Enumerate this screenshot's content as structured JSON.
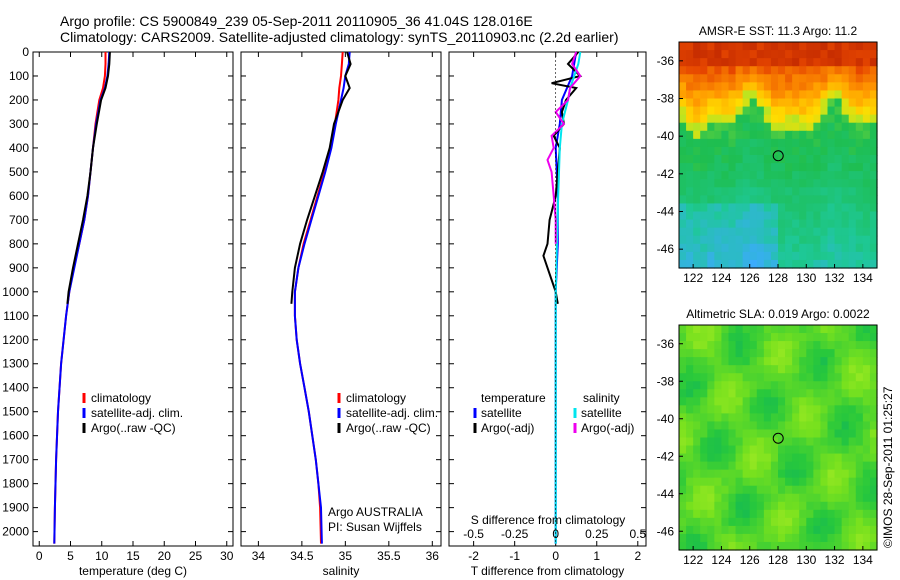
{
  "title": {
    "line1": "Argo profile: CS 5900849_239 05-Sep-2011 20110905_36 41.04S 128.016E",
    "line2": "Climatology: CARS2009. Satellite-adjusted climatology: synTS_20110903.nc (2.2d earlier)"
  },
  "credit": "©IMOS 28-Sep-2011 01:25:27",
  "colors": {
    "climatology": "#ff0000",
    "satellite": "#0000ff",
    "argo": "#000000",
    "sal_satellite": "#00e5ee",
    "sal_argo": "#ee00ee"
  },
  "chart_data": [
    {
      "type": "line",
      "id": "temperature",
      "xlabel": "temperature (deg C)",
      "ylabel": "",
      "xlim": [
        -1,
        31
      ],
      "ylim": [
        2060,
        0
      ],
      "xticks": [
        0,
        5,
        10,
        15,
        20,
        25,
        30
      ],
      "yticks": [
        0,
        100,
        200,
        300,
        400,
        500,
        600,
        700,
        800,
        900,
        1000,
        1100,
        1200,
        1300,
        1400,
        1500,
        1600,
        1700,
        1800,
        1900,
        2000
      ],
      "legend": [
        "climatology",
        "satellite-adj. clim.",
        "Argo(..raw -QC)"
      ],
      "legend_position": "lower-center",
      "series": [
        {
          "name": "climatology",
          "color": "#ff0000",
          "depth": [
            0,
            50,
            100,
            150,
            200,
            300,
            400,
            500,
            600,
            700,
            800,
            900,
            1000,
            1100,
            1200,
            1300,
            1500,
            1700,
            1900,
            2050
          ],
          "values": [
            10.6,
            10.6,
            10.5,
            10.2,
            9.6,
            9.0,
            8.6,
            8.2,
            7.8,
            7.2,
            6.4,
            5.5,
            4.8,
            4.3,
            3.9,
            3.5,
            3.0,
            2.7,
            2.5,
            2.4
          ]
        },
        {
          "name": "satellite-adj. clim.",
          "color": "#0000ff",
          "depth": [
            0,
            50,
            100,
            150,
            200,
            300,
            400,
            500,
            600,
            700,
            800,
            900,
            1000,
            1100,
            1200,
            1300,
            1500,
            1700,
            1900,
            2050
          ],
          "values": [
            11.2,
            11.1,
            10.9,
            10.5,
            9.8,
            9.1,
            8.6,
            8.2,
            7.8,
            7.2,
            6.4,
            5.6,
            4.8,
            4.3,
            3.9,
            3.5,
            3.0,
            2.7,
            2.5,
            2.4
          ]
        },
        {
          "name": "Argo(..raw -QC)",
          "color": "#000000",
          "depth": [
            0,
            50,
            100,
            150,
            200,
            300,
            400,
            500,
            600,
            700,
            800,
            900,
            1000,
            1050
          ],
          "values": [
            11.3,
            11.2,
            11.0,
            10.6,
            9.9,
            9.2,
            8.6,
            8.2,
            7.7,
            7.0,
            6.2,
            5.4,
            4.7,
            4.5
          ]
        }
      ]
    },
    {
      "type": "line",
      "id": "salinity",
      "xlabel": "salinity",
      "ylabel": "",
      "xlim": [
        33.8,
        36.1
      ],
      "ylim": [
        2060,
        0
      ],
      "xticks": [
        34,
        34.5,
        35,
        35.5,
        36
      ],
      "legend": [
        "climatology",
        "satellite-adj. clim.",
        "Argo(..raw -QC)"
      ],
      "legend_position": "lower-right",
      "annotation": [
        "Argo AUSTRALIA",
        "PI: Susan Wijffels"
      ],
      "series": [
        {
          "name": "climatology",
          "color": "#ff0000",
          "depth": [
            0,
            50,
            100,
            150,
            200,
            300,
            400,
            500,
            600,
            700,
            800,
            900,
            1000,
            1100,
            1200,
            1300,
            1400,
            1500,
            1600,
            1700,
            1800,
            1900,
            2050
          ],
          "values": [
            34.97,
            34.96,
            34.95,
            34.93,
            34.92,
            34.88,
            34.83,
            34.76,
            34.68,
            34.6,
            34.52,
            34.46,
            34.42,
            34.42,
            34.44,
            34.48,
            34.53,
            34.58,
            34.62,
            34.66,
            34.69,
            34.71,
            34.72
          ]
        },
        {
          "name": "satellite-adj. clim.",
          "color": "#0000ff",
          "depth": [
            0,
            50,
            100,
            150,
            200,
            300,
            400,
            500,
            600,
            700,
            800,
            900,
            1000,
            1100,
            1200,
            1300,
            1400,
            1500,
            1600,
            1700,
            1800,
            1900,
            2050
          ],
          "values": [
            35.05,
            35.04,
            35.0,
            34.98,
            34.95,
            34.89,
            34.84,
            34.77,
            34.69,
            34.61,
            34.53,
            34.46,
            34.42,
            34.42,
            34.44,
            34.48,
            34.53,
            34.58,
            34.62,
            34.66,
            34.69,
            34.72,
            34.73
          ]
        },
        {
          "name": "Argo(..raw -QC)",
          "color": "#000000",
          "depth": [
            0,
            50,
            100,
            150,
            200,
            300,
            400,
            500,
            600,
            700,
            800,
            900,
            1000,
            1050
          ],
          "values": [
            35.02,
            35.06,
            35.0,
            35.05,
            34.97,
            34.87,
            34.82,
            34.74,
            34.65,
            34.56,
            34.48,
            34.42,
            34.39,
            34.38
          ]
        }
      ]
    },
    {
      "type": "line",
      "id": "difference",
      "xlabel": "T difference from climatology",
      "xlabel2": "S difference from climatology",
      "xlim": [
        -2.6,
        2.2
      ],
      "ylim": [
        2060,
        0
      ],
      "xticks": [
        -2,
        -1,
        0,
        1,
        2
      ],
      "xticks_s": [
        -0.5,
        -0.25,
        0,
        0.25,
        0.5
      ],
      "xticklabels_s": [
        "-0.5",
        "-0.25",
        "0",
        "0.25",
        "0.5"
      ],
      "legend": {
        "temperature_header": "temperature",
        "salinity_header": "salinity",
        "items": [
          "satellite",
          "Argo(-adj)",
          "satellite",
          "Argo(-adj)"
        ]
      },
      "series": [
        {
          "name": "satellite",
          "group": "temperature",
          "color": "#0000ff",
          "depth": [
            0,
            100,
            200,
            300,
            400,
            600,
            800,
            1000,
            1200,
            1500,
            2050
          ],
          "values": [
            0.5,
            0.4,
            0.15,
            0.1,
            0.0,
            0.05,
            0.05,
            0.0,
            0.0,
            0.0,
            0.0
          ]
        },
        {
          "name": "Argo(-adj)",
          "group": "temperature",
          "color": "#000000",
          "depth": [
            0,
            50,
            100,
            130,
            150,
            200,
            250,
            300,
            350,
            400,
            500,
            600,
            700,
            800,
            850,
            900,
            950,
            1000,
            1050
          ],
          "values": [
            0.55,
            0.3,
            0.6,
            -0.1,
            0.5,
            0.25,
            0.15,
            0.2,
            -0.05,
            0.1,
            0.05,
            0.0,
            -0.15,
            -0.2,
            -0.3,
            -0.2,
            -0.1,
            0.0,
            0.05
          ]
        },
        {
          "name": "satellite",
          "group": "salinity",
          "color": "#00e5ee",
          "depth": [
            0,
            50,
            100,
            150,
            200,
            300,
            400,
            500,
            600,
            800,
            1000,
            1200,
            1500,
            2050
          ],
          "values": [
            0.6,
            0.55,
            0.45,
            0.35,
            0.3,
            0.15,
            0.1,
            0.08,
            0.06,
            0.03,
            0.0,
            0.0,
            0.0,
            0.0
          ]
        },
        {
          "name": "Argo(-adj)",
          "group": "salinity",
          "color": "#ee00ee",
          "depth": [
            0,
            50,
            100,
            150,
            200,
            250,
            300,
            350,
            400,
            450,
            500,
            600,
            700,
            800
          ],
          "values": [
            0.5,
            0.4,
            0.6,
            0.35,
            0.3,
            0.0,
            0.2,
            -0.1,
            -0.05,
            -0.2,
            -0.1,
            -0.05,
            0.0,
            0.0
          ]
        }
      ]
    },
    {
      "type": "heatmap",
      "id": "sst-map",
      "title": "AMSR-E SST: 11.3 Argo: 11.2",
      "xlim": [
        121,
        135
      ],
      "ylim": [
        -47,
        -35
      ],
      "xticks": [
        122,
        124,
        126,
        128,
        130,
        132,
        134
      ],
      "yticks": [
        -36,
        -38,
        -40,
        -42,
        -44,
        -46
      ],
      "marker": {
        "lon": 128.016,
        "lat": -41.04,
        "shape": "circle"
      }
    },
    {
      "type": "heatmap",
      "id": "sla-map",
      "title": "Altimetric SLA: 0.019 Argo: 0.0022",
      "xlim": [
        121,
        135
      ],
      "ylim": [
        -47,
        -35
      ],
      "xticks": [
        122,
        124,
        126,
        128,
        130,
        132,
        134
      ],
      "yticks": [
        -36,
        -38,
        -40,
        -42,
        -44,
        -46
      ],
      "marker": {
        "lon": 128.016,
        "lat": -41.04,
        "shape": "circle"
      }
    }
  ]
}
